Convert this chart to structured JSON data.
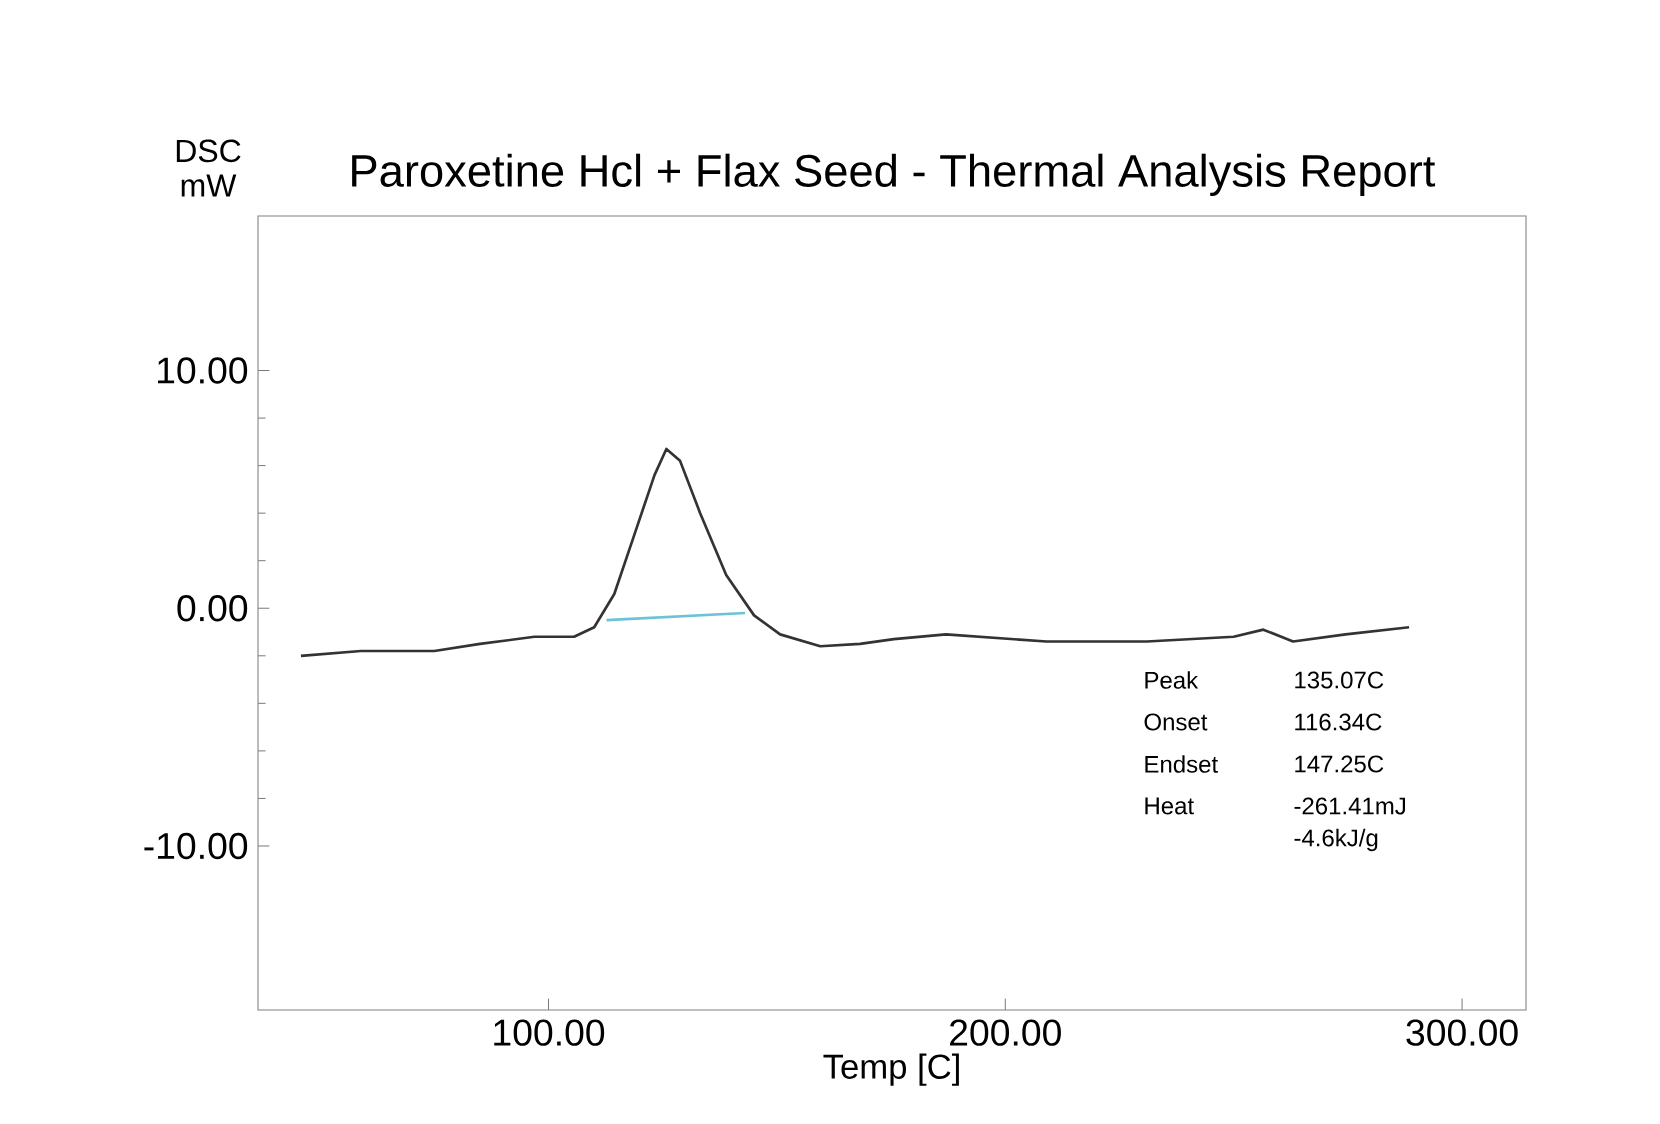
{
  "chart_data": {
    "type": "line",
    "title": "Paroxetine Hcl + Flax Seed - Thermal Analysis Report",
    "xlabel": "Temp  [C]",
    "ylabel": "DSC mW",
    "xlim": [
      36.4,
      314
    ],
    "ylim": [
      -16.9,
      16.5
    ],
    "xticks": [
      {
        "value": 100,
        "label": "100.00"
      },
      {
        "value": 200,
        "label": "200.00"
      },
      {
        "value": 300,
        "label": "300.00"
      }
    ],
    "yticks": [
      {
        "value": -10,
        "label": "-10.00"
      },
      {
        "value": 0,
        "label": "0.00"
      },
      {
        "value": 10,
        "label": "10.00"
      }
    ],
    "series": [
      {
        "color": "#333333",
        "x": [
          45.8,
          58.9,
          75,
          85,
          96.9,
          105.6,
          110,
          114.4,
          118.8,
          123.2,
          125.8,
          128.8,
          133.2,
          138.9,
          145,
          150.7,
          159.5,
          168.2,
          175.6,
          187,
          209,
          231,
          250,
          256.5,
          263,
          274.5,
          288.4
        ],
        "values": [
          -2.0,
          -1.8,
          -1.8,
          -1.5,
          -1.2,
          -1.2,
          -0.8,
          0.6,
          3.1,
          5.6,
          6.7,
          6.2,
          4.0,
          1.4,
          -0.3,
          -1.1,
          -1.6,
          -1.5,
          -1.3,
          -1.1,
          -1.4,
          -1.4,
          -1.2,
          -0.9,
          -1.4,
          -1.1,
          -0.8
        ]
      },
      {
        "color": "#6cc3d5",
        "x": [
          112.7,
          143
        ],
        "values": [
          -0.5,
          -0.2
        ]
      }
    ],
    "annotations": [
      "Peak",
      "135.07C",
      "Onset",
      "116.34C",
      "Endset",
      "147.25C",
      "Heat",
      "-261.41mJ",
      "-4.6kJ/g"
    ],
    "grid": false,
    "legend": false,
    "marker": "none",
    "line_style": "solid"
  }
}
